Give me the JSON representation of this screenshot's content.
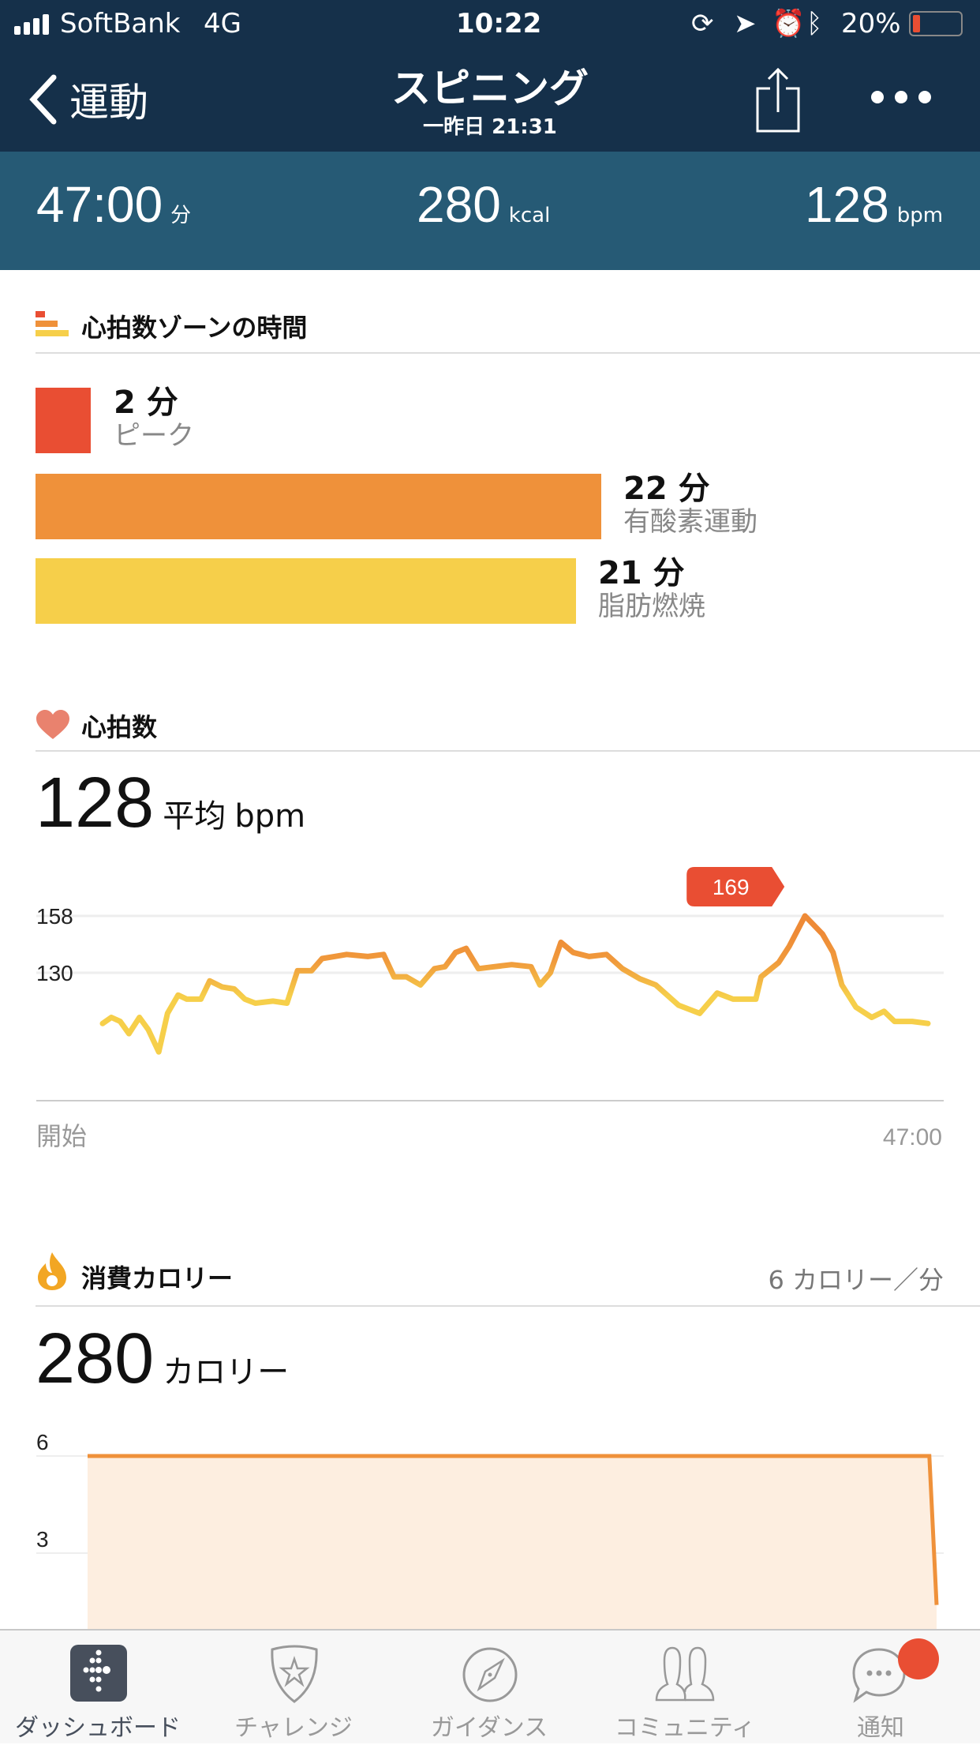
{
  "status_bar": {
    "carrier": "SoftBank",
    "network": "4G",
    "time": "10:22",
    "battery": "20%",
    "battery_level": 0.2
  },
  "nav": {
    "back_label": "運動",
    "title": "スピニング",
    "subtitle": "一昨日 21:31"
  },
  "summary": {
    "duration": "47:00",
    "duration_unit": "分",
    "calories": "280",
    "calories_unit": "kcal",
    "heart_rate": "128",
    "heart_rate_unit": "bpm"
  },
  "zones": {
    "title": "心拍数ゾーンの時間",
    "items": [
      {
        "value": "2 分",
        "label": "ピーク",
        "minutes": 2,
        "color": "#e94e33"
      },
      {
        "value": "22 分",
        "label": "有酸素運動",
        "minutes": 22,
        "color": "#ef913a"
      },
      {
        "value": "21 分",
        "label": "脂肪燃焼",
        "minutes": 21,
        "color": "#f6cf4a"
      }
    ]
  },
  "heart": {
    "title": "心拍数",
    "avg": "128",
    "avg_label": "平均",
    "unit": "bpm"
  },
  "chart_data": [
    {
      "type": "line",
      "title": "",
      "xlabel": "",
      "ylabel": "",
      "x_tick_labels": [
        "開始",
        "47:00"
      ],
      "y_ticks": [
        130,
        158
      ],
      "xlim": [
        0,
        47
      ],
      "ylim": [
        80,
        175
      ],
      "grid": true,
      "annotation": {
        "label": "169"
      },
      "x": [
        0,
        0.5,
        1.0,
        1.5,
        2.1,
        2.6,
        3.2,
        3.7,
        4.3,
        4.8,
        5.6,
        6.1,
        6.8,
        7.5,
        8.1,
        8.7,
        9.7,
        10.5,
        11.1,
        11.9,
        12.5,
        13.2,
        13.9,
        15.1,
        16.0,
        16.6,
        17.3,
        18.1,
        18.9,
        19.5,
        20.1,
        20.7,
        21.4,
        22.3,
        23.3,
        24.4,
        24.9,
        25.5,
        26.1,
        26.8,
        27.7,
        28.7,
        29.6,
        30.6,
        31.5,
        32.8,
        34.0,
        35.0,
        35.9,
        37.2,
        37.5,
        38.5,
        39.1,
        40.0,
        41.0,
        41.6,
        42.1,
        42.9,
        43.8,
        44.5,
        45.1,
        46.1,
        47.0
      ],
      "y": [
        105,
        108,
        106,
        100,
        108,
        102,
        91,
        110,
        119,
        117,
        117,
        126,
        123,
        122,
        117,
        115,
        116,
        115,
        131,
        131,
        137,
        138,
        139,
        138,
        139,
        128,
        128,
        124,
        132,
        133,
        140,
        142,
        132,
        133,
        134,
        133,
        124,
        130,
        145,
        140,
        138,
        139,
        132,
        127,
        124,
        114,
        110,
        120,
        117,
        117,
        128,
        135,
        143,
        158,
        149,
        140,
        124,
        113,
        108,
        111,
        106,
        106,
        105
      ]
    },
    {
      "type": "area",
      "title": "",
      "xlabel": "",
      "ylabel": "",
      "y_ticks": [
        3,
        6
      ],
      "x": [
        0,
        46.6,
        47
      ],
      "y": [
        6,
        6,
        1.4
      ],
      "color": "#ef913a"
    }
  ],
  "calories": {
    "title": "消費カロリー",
    "rate": "6 カロリー／分",
    "total": "280",
    "unit": "カロリー"
  },
  "tabs": [
    {
      "label": "ダッシュボード",
      "active": true
    },
    {
      "label": "チャレンジ"
    },
    {
      "label": "ガイダンス"
    },
    {
      "label": "コミュニティ"
    },
    {
      "label": "通知",
      "badge": true
    }
  ]
}
